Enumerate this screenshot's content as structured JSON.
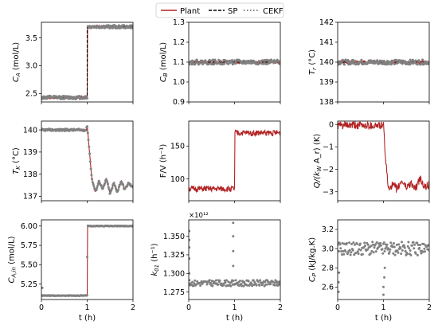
{
  "legend": [
    {
      "label": "Plant",
      "color": "#b22222",
      "style": "solid"
    },
    {
      "label": "SP",
      "color": "#000000",
      "style": "dashed"
    },
    {
      "label": "CEKF",
      "color": "#808080",
      "style": "dotted"
    }
  ],
  "chart_data": [
    {
      "type": "line",
      "row": 0,
      "col": 0,
      "ylabel": "C_A (mol/L)",
      "xlabel": "",
      "xlim": [
        0,
        2
      ],
      "ylim": [
        2.35,
        3.78
      ],
      "xticks": [
        0,
        1,
        2
      ],
      "xtick_labels": [
        "",
        "",
        ""
      ],
      "yticks": [
        2.5,
        3.0,
        3.5
      ],
      "ytick_labels": [
        "2.5",
        "3.0",
        "3.5"
      ],
      "series": [
        {
          "name": "Plant",
          "kind": "plant",
          "x": [
            0,
            1.0,
            1.0,
            2
          ],
          "y": [
            2.43,
            2.43,
            3.7,
            3.7
          ],
          "noise": 0.025,
          "seed": 11
        },
        {
          "name": "SP",
          "kind": "sp",
          "x": [
            0,
            1.0,
            1.0,
            2
          ],
          "y": [
            2.43,
            2.43,
            3.7,
            3.7
          ]
        },
        {
          "name": "CEKF",
          "kind": "cekf",
          "x": [
            0,
            1.0,
            1.0,
            2
          ],
          "y": [
            2.43,
            2.43,
            3.7,
            3.7
          ],
          "noise": 0.03,
          "seed": 12
        }
      ]
    },
    {
      "type": "line",
      "row": 0,
      "col": 1,
      "ylabel": "C_B (mol/L)",
      "xlabel": "",
      "xlim": [
        0,
        2
      ],
      "ylim": [
        0.9,
        1.3
      ],
      "xticks": [
        0,
        1,
        2
      ],
      "xtick_labels": [
        "",
        "",
        ""
      ],
      "yticks": [
        0.9,
        1.0,
        1.1,
        1.2,
        1.3
      ],
      "ytick_labels": [
        "0.9",
        "1.0",
        "1.1",
        "1.2",
        "1.3"
      ],
      "series": [
        {
          "name": "Plant",
          "kind": "plant",
          "x": [
            0,
            2
          ],
          "y": [
            1.1,
            1.1
          ],
          "noise": 0.008,
          "seed": 21
        },
        {
          "name": "SP",
          "kind": "sp",
          "x": [
            0,
            2
          ],
          "y": [
            1.1,
            1.1
          ]
        },
        {
          "name": "CEKF",
          "kind": "cekf",
          "x": [
            0,
            2
          ],
          "y": [
            1.1,
            1.1
          ],
          "noise": 0.012,
          "seed": 22
        }
      ]
    },
    {
      "type": "line",
      "row": 0,
      "col": 2,
      "ylabel": "T_r (°C)",
      "xlabel": "",
      "xlim": [
        0,
        2
      ],
      "ylim": [
        138,
        142
      ],
      "xticks": [
        0,
        1,
        2
      ],
      "xtick_labels": [
        "",
        "",
        ""
      ],
      "yticks": [
        138,
        139,
        140,
        141,
        142
      ],
      "ytick_labels": [
        "138",
        "139",
        "140",
        "141",
        "142"
      ],
      "series": [
        {
          "name": "Plant",
          "kind": "plant",
          "x": [
            0,
            2
          ],
          "y": [
            140,
            140
          ],
          "noise": 0.08,
          "seed": 31
        },
        {
          "name": "SP",
          "kind": "sp",
          "x": [
            0,
            2
          ],
          "y": [
            140,
            140
          ]
        },
        {
          "name": "CEKF",
          "kind": "cekf",
          "x": [
            0,
            2
          ],
          "y": [
            140,
            140
          ],
          "noise": 0.12,
          "seed": 32
        }
      ]
    },
    {
      "type": "line",
      "row": 1,
      "col": 0,
      "ylabel": "T_K (°C)",
      "xlabel": "",
      "xlim": [
        0,
        2
      ],
      "ylim": [
        136.8,
        140.4
      ],
      "xticks": [
        0,
        1,
        2
      ],
      "xtick_labels": [
        "",
        "",
        ""
      ],
      "yticks": [
        137,
        138,
        139,
        140
      ],
      "ytick_labels": [
        "137",
        "138",
        "139",
        "140"
      ],
      "series": [
        {
          "name": "Plant",
          "kind": "plant",
          "x": [
            0,
            0.98,
            1.0,
            1.05,
            1.1,
            1.18,
            1.26,
            1.34,
            1.42,
            1.5,
            1.58,
            1.66,
            1.74,
            1.82,
            1.9,
            2.0
          ],
          "y": [
            140.0,
            140.0,
            140.2,
            139.0,
            137.8,
            137.2,
            137.7,
            137.3,
            137.8,
            137.1,
            137.6,
            137.2,
            137.7,
            137.3,
            137.6,
            137.4
          ],
          "noise": 0.04,
          "seed": 41
        },
        {
          "name": "CEKF",
          "kind": "cekf",
          "x": [
            0,
            0.98,
            1.0,
            1.05,
            1.1,
            1.18,
            1.26,
            1.34,
            1.42,
            1.5,
            1.58,
            1.66,
            1.74,
            1.82,
            1.9,
            2.0
          ],
          "y": [
            140.0,
            140.0,
            140.2,
            139.0,
            137.8,
            137.2,
            137.7,
            137.3,
            137.8,
            137.1,
            137.6,
            137.2,
            137.7,
            137.3,
            137.6,
            137.4
          ],
          "noise": 0.05,
          "seed": 42
        }
      ]
    },
    {
      "type": "line",
      "row": 1,
      "col": 1,
      "ylabel": "F/V (h⁻¹)",
      "xlabel": "",
      "xlim": [
        0,
        2
      ],
      "ylim": [
        67,
        188
      ],
      "xticks": [
        0,
        1,
        2
      ],
      "xtick_labels": [
        "",
        "",
        ""
      ],
      "yticks": [
        100,
        150
      ],
      "ytick_labels": [
        "100",
        "150"
      ],
      "series": [
        {
          "name": "Plant",
          "kind": "plant",
          "x": [
            0,
            1.0,
            1.0,
            2
          ],
          "y": [
            85,
            85,
            170,
            170
          ],
          "noise": 4.5,
          "seed": 51
        }
      ]
    },
    {
      "type": "line",
      "row": 1,
      "col": 2,
      "ylabel": "Q/(k_W A_r) (K)",
      "xlabel": "",
      "xlim": [
        0,
        2
      ],
      "ylim": [
        -3.4,
        0.15
      ],
      "xticks": [
        0,
        1,
        2
      ],
      "xtick_labels": [
        "",
        "",
        ""
      ],
      "yticks": [
        -3,
        -2,
        -1,
        0
      ],
      "ytick_labels": [
        "−3",
        "−2",
        "−1",
        "0"
      ],
      "series": [
        {
          "name": "Plant",
          "kind": "plant",
          "x": [
            0,
            1.0,
            1.05,
            1.1,
            1.2,
            1.3,
            1.4,
            1.5,
            1.6,
            1.7,
            1.8,
            1.9,
            2.0
          ],
          "y": [
            -0.05,
            -0.05,
            -1.6,
            -2.8,
            -2.7,
            -2.9,
            -2.5,
            -2.8,
            -2.6,
            -2.9,
            -2.4,
            -2.8,
            -2.7
          ],
          "noise": 0.18,
          "seed": 61
        }
      ]
    },
    {
      "type": "line",
      "row": 2,
      "col": 0,
      "ylabel": "C_A,in (mol/L)",
      "xlabel": "t (h)",
      "xlim": [
        0,
        2
      ],
      "ylim": [
        5.05,
        6.08
      ],
      "xticks": [
        0,
        1,
        2
      ],
      "xtick_labels": [
        "0",
        "1",
        "2"
      ],
      "yticks": [
        5.25,
        5.5,
        5.75,
        6.0
      ],
      "ytick_labels": [
        "5.25",
        "5.50",
        "5.75",
        "6.00"
      ],
      "series": [
        {
          "name": "Plant",
          "kind": "plant",
          "x": [
            0,
            1.0,
            1.0,
            2
          ],
          "y": [
            5.1,
            5.1,
            6.0,
            6.0
          ],
          "noise": 0.0,
          "seed": 71
        },
        {
          "name": "CEKF",
          "kind": "cekf",
          "x": [
            0,
            1.0,
            1.0,
            2
          ],
          "y": [
            5.1,
            5.1,
            6.0,
            6.0
          ],
          "noise": 0.004,
          "seed": 72,
          "outliers": [
            [
              0.02,
              5.2
            ],
            [
              1.0,
              5.6
            ]
          ]
        }
      ]
    },
    {
      "type": "scatter",
      "row": 2,
      "col": 1,
      "ylabel": "k_01 (h⁻¹)",
      "xlabel": "t (h)",
      "offset_label": "×10¹²",
      "xlim": [
        0,
        2
      ],
      "ylim": [
        1.265,
        1.372
      ],
      "xticks": [
        0,
        1,
        2
      ],
      "xtick_labels": [
        "0",
        "1",
        "2"
      ],
      "yticks": [
        1.275,
        1.3,
        1.325,
        1.35
      ],
      "ytick_labels": [
        "1.275",
        "1.300",
        "1.325",
        "1.350"
      ],
      "series": [
        {
          "name": "CEKF",
          "kind": "cekf",
          "x": [
            0,
            2
          ],
          "y": [
            1.287,
            1.287
          ],
          "noise": 0.004,
          "seed": 81,
          "outliers": [
            [
              0.01,
              1.357
            ],
            [
              0.01,
              1.345
            ],
            [
              0.01,
              1.335
            ],
            [
              0.01,
              1.32
            ],
            [
              0.01,
              1.3
            ],
            [
              0.97,
              1.368
            ],
            [
              0.97,
              1.35
            ],
            [
              0.97,
              1.33
            ],
            [
              0.97,
              1.31
            ]
          ]
        }
      ]
    },
    {
      "type": "scatter",
      "row": 2,
      "col": 2,
      "ylabel": "C_P (kJ/kg.K)",
      "xlabel": "t (h)",
      "xlim": [
        0,
        2
      ],
      "ylim": [
        2.47,
        3.3
      ],
      "xticks": [
        0,
        1,
        2
      ],
      "xtick_labels": [
        "0",
        "1",
        "2"
      ],
      "yticks": [
        2.6,
        2.8,
        3.0,
        3.2
      ],
      "ytick_labels": [
        "2.6",
        "2.8",
        "3.0",
        "3.2"
      ],
      "series": [
        {
          "name": "CEKF",
          "kind": "cekf",
          "x": [
            0,
            2
          ],
          "y": [
            3.0,
            3.0
          ],
          "noise": 0.07,
          "seed": 91,
          "outliers": [
            [
              0.02,
              2.55
            ],
            [
              0.02,
              2.65
            ],
            [
              0.03,
              2.75
            ],
            [
              1.0,
              2.52
            ],
            [
              1.0,
              2.6
            ],
            [
              1.02,
              2.7
            ],
            [
              1.03,
              2.8
            ]
          ]
        }
      ]
    }
  ]
}
